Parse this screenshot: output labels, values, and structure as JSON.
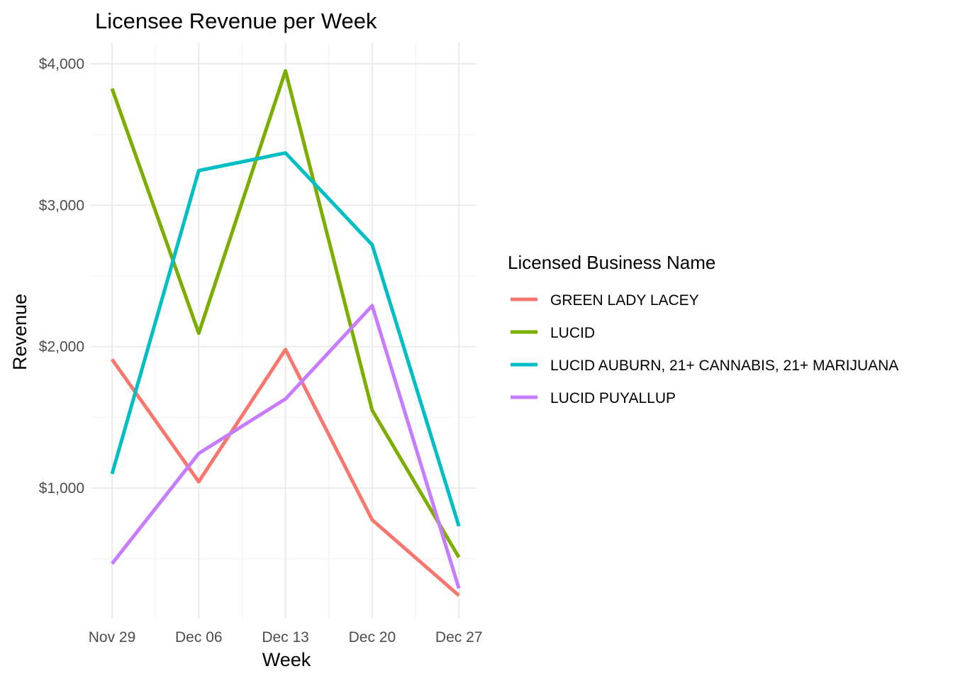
{
  "chart_data": {
    "type": "line",
    "title": "Licensee Revenue per Week",
    "xlabel": "Week",
    "ylabel": "Revenue",
    "categories": [
      "Nov 29",
      "Dec 06",
      "Dec 13",
      "Dec 20",
      "Dec 27"
    ],
    "y_ticks": [
      1000,
      2000,
      3000,
      4000
    ],
    "y_tick_labels": [
      "$1,000",
      "$2,000",
      "$3,000",
      "$4,000"
    ],
    "ylim": [
      120,
      4100
    ],
    "grid": true,
    "legend": {
      "title": "Licensed Business Name",
      "position": "right"
    },
    "series": [
      {
        "name": "GREEN LADY LACEY",
        "color": "#F8766D",
        "values": [
          1910,
          1045,
          1980,
          775,
          240
        ]
      },
      {
        "name": "LUCID",
        "color": "#7CAE00",
        "values": [
          3825,
          2095,
          3950,
          1550,
          510
        ]
      },
      {
        "name": "LUCID AUBURN, 21+ CANNABIS, 21+ MARIJUANA",
        "color": "#00BFC4",
        "values": [
          1100,
          3245,
          3370,
          2720,
          730
        ]
      },
      {
        "name": "LUCID PUYALLUP",
        "color": "#C77CFF",
        "values": [
          465,
          1245,
          1630,
          2290,
          290
        ]
      }
    ]
  }
}
